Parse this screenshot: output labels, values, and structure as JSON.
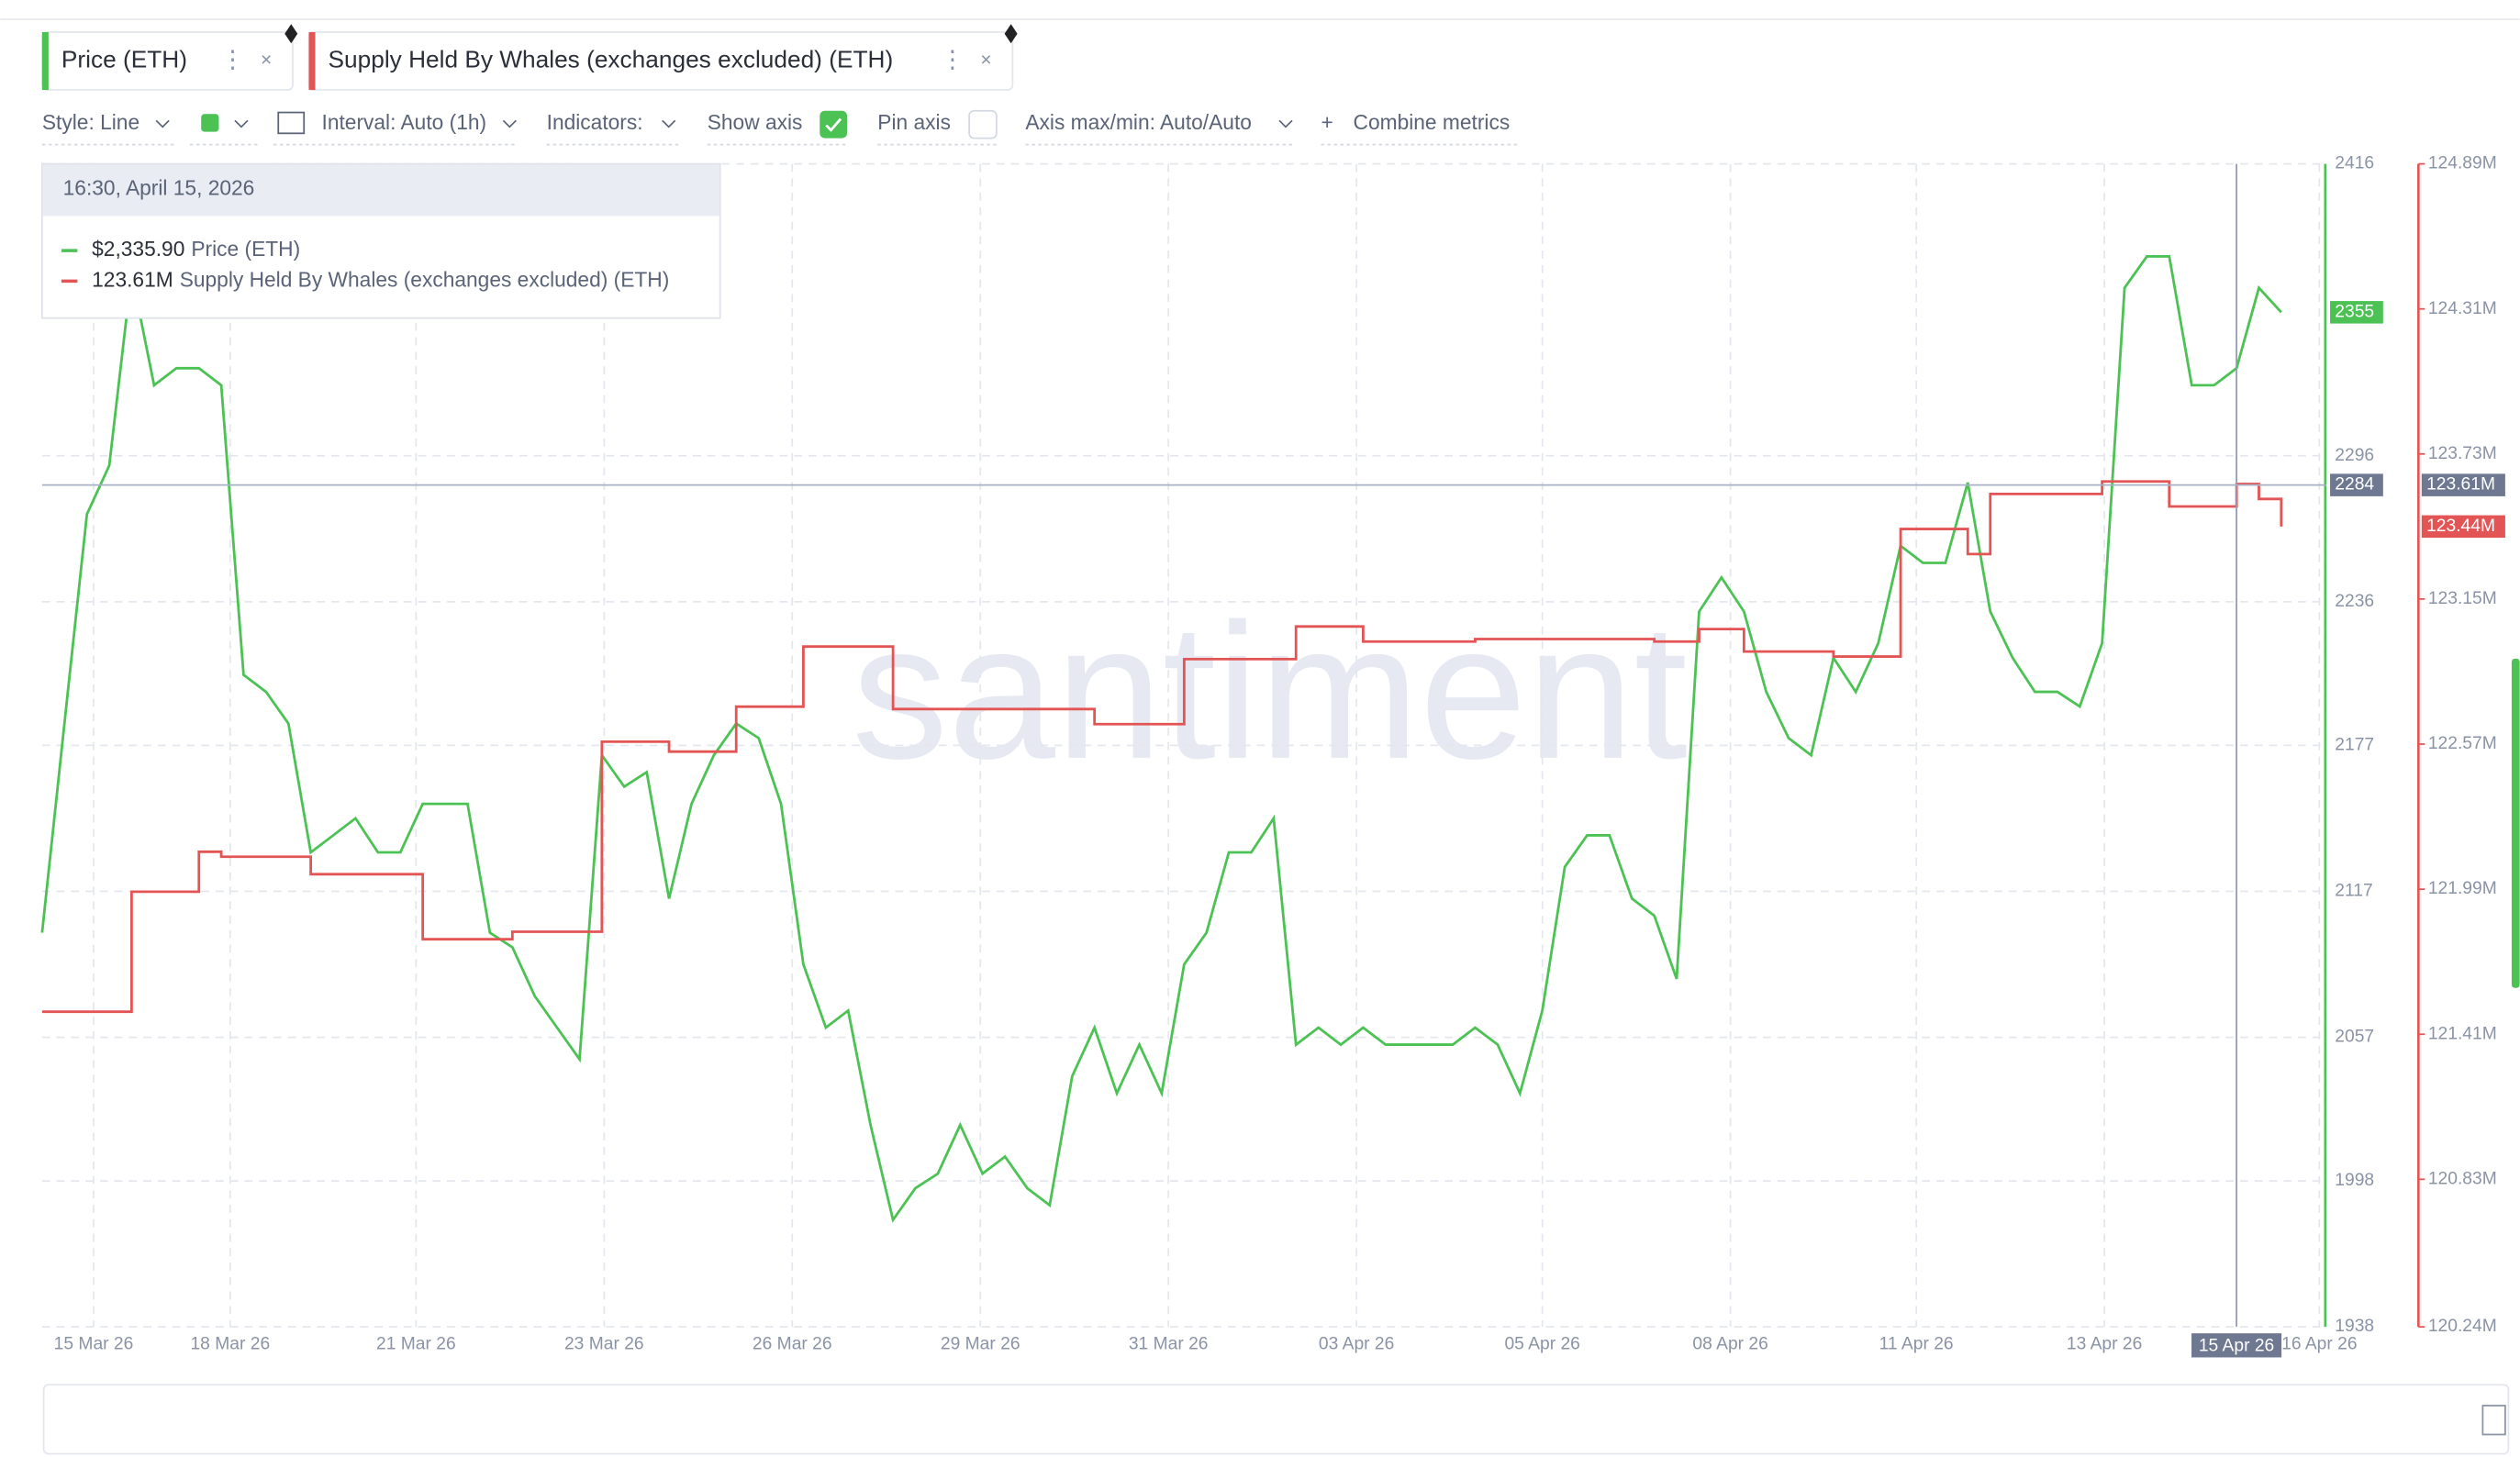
{
  "chart_data": {
    "type": "line",
    "toolbar": [
      "Style: Line",
      "Interval: Auto (1h)",
      "Indicators:",
      "Show axis",
      "Pin axis",
      "Axis max/min: Auto/Auto",
      "Combine metrics"
    ],
    "watermark": "santiment",
    "tooltip": {
      "title": "16:30, April 15, 2026",
      "rows": [
        {
          "value": "$2,335.90",
          "name": "Price (ETH)"
        },
        {
          "value": "123.61M",
          "name": "Supply Held By Whales (exchanges excluded) (ETH)"
        }
      ]
    },
    "crosshair": {
      "x": 98,
      "x_label": "15 Apr 26",
      "y": 2284,
      "y2_label": "123.61M"
    },
    "xlim": [
      0,
      102
    ],
    "xticks": [
      {
        "value": 2.3,
        "label": "15 Mar 26"
      },
      {
        "value": 8.4,
        "label": "18 Mar 26"
      },
      {
        "value": 16.7,
        "label": "21 Mar 26"
      },
      {
        "value": 25.1,
        "label": "23 Mar 26"
      },
      {
        "value": 33.5,
        "label": "26 Mar 26"
      },
      {
        "value": 41.9,
        "label": "29 Mar 26"
      },
      {
        "value": 50.3,
        "label": "31 Mar 26"
      },
      {
        "value": 58.7,
        "label": "03 Apr 26"
      },
      {
        "value": 67.0,
        "label": "05 Apr 26"
      },
      {
        "value": 75.4,
        "label": "08 Apr 26"
      },
      {
        "value": 83.7,
        "label": "11 Apr 26"
      },
      {
        "value": 92.1,
        "label": "13 Apr 26"
      },
      {
        "value": 101.7,
        "label": "16 Apr 26"
      }
    ],
    "ylim": [
      1938,
      2416
    ],
    "yticks": [
      2416,
      2296,
      2236,
      2177,
      2117,
      2057,
      1998,
      1938
    ],
    "y2lim": [
      120.24,
      124.89
    ],
    "y2ticks": [
      {
        "value": 124.89,
        "label": "124.89M"
      },
      {
        "value": 124.31,
        "label": "124.31M"
      },
      {
        "value": 123.73,
        "label": "123.73M"
      },
      {
        "value": 123.15,
        "label": "123.15M"
      },
      {
        "value": 122.57,
        "label": "122.57M"
      },
      {
        "value": 121.99,
        "label": "121.99M"
      },
      {
        "value": 121.41,
        "label": "121.41M"
      },
      {
        "value": 120.83,
        "label": "120.83M"
      },
      {
        "value": 120.24,
        "label": "120.24M"
      }
    ],
    "grid": true,
    "series": [
      {
        "name": "Price (ETH)",
        "color": "#4cc254",
        "axis": "y",
        "last_value_label": "2355",
        "values": [
          2100,
          2186,
          2272,
          2292,
          2371,
          2325,
          2332,
          2332,
          2325,
          2206,
          2199,
          2186,
          2133,
          2140,
          2147,
          2133,
          2133,
          2153,
          2153,
          2153,
          2100,
          2094,
          2074,
          2061,
          2048,
          2173,
          2160,
          2166,
          2114,
          2153,
          2173,
          2186,
          2180,
          2153,
          2087,
          2061,
          2068,
          2021,
          1982,
          1995,
          2001,
          2021,
          2001,
          2008,
          1995,
          1988,
          2041,
          2061,
          2034,
          2054,
          2034,
          2087,
          2100,
          2133,
          2133,
          2147,
          2054,
          2061,
          2054,
          2061,
          2054,
          2054,
          2054,
          2054,
          2061,
          2054,
          2034,
          2068,
          2127,
          2140,
          2140,
          2114,
          2107,
          2081,
          2232,
          2246,
          2232,
          2199,
          2180,
          2173,
          2213,
          2199,
          2219,
          2259,
          2252,
          2252,
          2285,
          2232,
          2213,
          2199,
          2199,
          2193,
          2219,
          2365,
          2378,
          2378,
          2325,
          2325,
          2332,
          2365,
          2355
        ]
      },
      {
        "name": "Supply Held By Whales (exchanges excluded) (ETH)",
        "color": "#e35454",
        "axis": "y2",
        "last_value_label": "123.44M",
        "values": [
          121.5,
          121.5,
          121.5,
          121.5,
          121.98,
          121.98,
          121.98,
          122.14,
          122.12,
          122.12,
          122.12,
          122.12,
          122.05,
          122.05,
          122.05,
          122.05,
          122.05,
          121.79,
          121.79,
          121.79,
          121.79,
          121.82,
          121.82,
          121.82,
          121.82,
          122.58,
          122.58,
          122.58,
          122.54,
          122.54,
          122.54,
          122.72,
          122.72,
          122.72,
          122.96,
          122.96,
          122.96,
          122.96,
          122.71,
          122.71,
          122.71,
          122.71,
          122.71,
          122.71,
          122.71,
          122.71,
          122.71,
          122.65,
          122.65,
          122.65,
          122.65,
          122.91,
          122.91,
          122.91,
          122.91,
          122.91,
          123.04,
          123.04,
          123.04,
          122.98,
          122.98,
          122.98,
          122.98,
          122.98,
          122.99,
          122.99,
          122.99,
          122.99,
          122.99,
          122.99,
          122.99,
          122.99,
          122.98,
          122.98,
          123.03,
          123.03,
          122.94,
          122.94,
          122.94,
          122.94,
          122.92,
          122.92,
          122.92,
          123.43,
          123.43,
          123.43,
          123.33,
          123.57,
          123.57,
          123.57,
          123.57,
          123.57,
          123.62,
          123.62,
          123.62,
          123.52,
          123.52,
          123.52,
          123.61,
          123.55,
          123.44
        ]
      }
    ]
  }
}
